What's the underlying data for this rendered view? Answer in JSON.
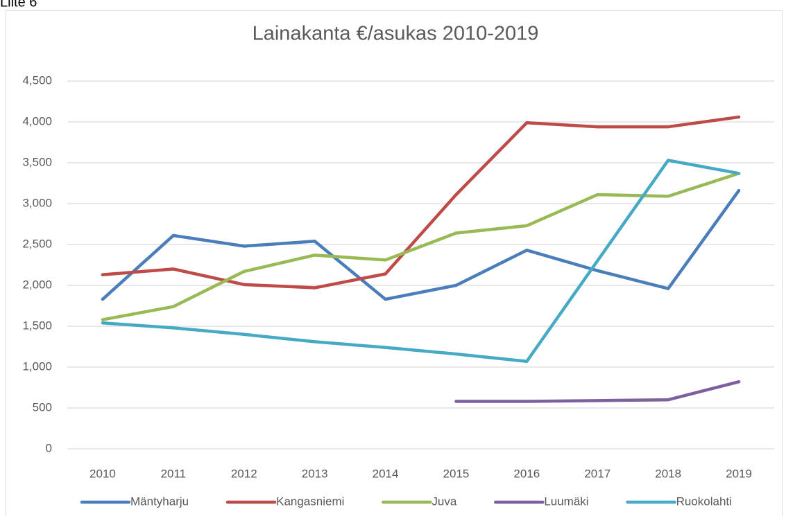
{
  "page_label": "Liite 6",
  "chart_data": {
    "type": "line",
    "title": "Lainakanta €/asukas 2010-2019",
    "categories": [
      "2010",
      "2011",
      "2012",
      "2013",
      "2014",
      "2015",
      "2016",
      "2017",
      "2018",
      "2019"
    ],
    "series": [
      {
        "name": "Mäntyharju",
        "color": "#4a7ebb",
        "values": [
          1830,
          2610,
          2480,
          2540,
          1830,
          2000,
          2430,
          2180,
          1960,
          3160
        ]
      },
      {
        "name": "Kangasniemi",
        "color": "#be4b48",
        "values": [
          2130,
          2200,
          2010,
          1970,
          2140,
          3110,
          3990,
          3940,
          3940,
          4060
        ]
      },
      {
        "name": "Juva",
        "color": "#98b954",
        "values": [
          1580,
          1740,
          2170,
          2370,
          2310,
          2640,
          2730,
          3110,
          3090,
          3370
        ]
      },
      {
        "name": "Luumäki",
        "color": "#7d60a0",
        "values": [
          null,
          null,
          null,
          null,
          null,
          580,
          580,
          590,
          600,
          820
        ]
      },
      {
        "name": "Ruokolahti",
        "color": "#46aac5",
        "values": [
          1540,
          1480,
          1400,
          1310,
          1240,
          1160,
          1070,
          2300,
          3530,
          3370
        ]
      }
    ],
    "ylim": [
      0,
      4500
    ],
    "yticks": [
      0,
      500,
      {
        "value": 1000,
        "label": "1,000"
      },
      {
        "value": 1500,
        "label": "1,500"
      },
      {
        "value": 2000,
        "label": "2,000"
      },
      {
        "value": 2500,
        "label": "2,500"
      },
      {
        "value": 3000,
        "label": "3,000"
      },
      {
        "value": 3500,
        "label": "3,500"
      },
      {
        "value": 4000,
        "label": "4,000"
      },
      {
        "value": 4500,
        "label": "4,500"
      }
    ],
    "grid": true,
    "legend": "bottom"
  }
}
